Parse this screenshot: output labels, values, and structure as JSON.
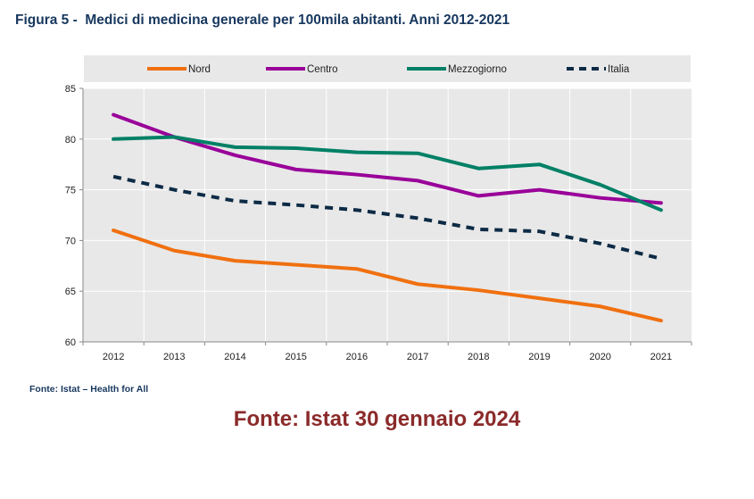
{
  "chart_data": {
    "type": "line",
    "title": "Figura 5 -  Medici di medicina generale per 100mila abitanti. Anni 2012-2021",
    "categories": [
      "2012",
      "2013",
      "2014",
      "2015",
      "2016",
      "2017",
      "2018",
      "2019",
      "2020",
      "2021"
    ],
    "ylim": [
      60,
      85
    ],
    "yticks": [
      60,
      65,
      70,
      75,
      80,
      85
    ],
    "grid": true,
    "legend": "top",
    "series": [
      {
        "name": "Nord",
        "color": "#f07010",
        "dash": false,
        "values": [
          71.0,
          69.0,
          68.0,
          67.6,
          67.2,
          65.7,
          65.1,
          64.3,
          63.5,
          62.1
        ]
      },
      {
        "name": "Centro",
        "color": "#990099",
        "dash": false,
        "values": [
          82.4,
          80.2,
          78.4,
          77.0,
          76.5,
          75.9,
          74.4,
          75.0,
          74.2,
          73.7
        ]
      },
      {
        "name": "Mezzogiorno",
        "color": "#008066",
        "dash": false,
        "values": [
          80.0,
          80.2,
          79.2,
          79.1,
          78.7,
          78.6,
          77.1,
          77.5,
          75.5,
          73.0
        ]
      },
      {
        "name": "Italia",
        "color": "#0d2b45",
        "dash": true,
        "values": [
          76.3,
          75.0,
          73.9,
          73.5,
          73.0,
          72.2,
          71.1,
          70.9,
          69.7,
          68.2
        ]
      }
    ]
  },
  "source": "Fonte: Istat – Health for All",
  "note": "Fonte: Istat 30 gennaio 2024"
}
